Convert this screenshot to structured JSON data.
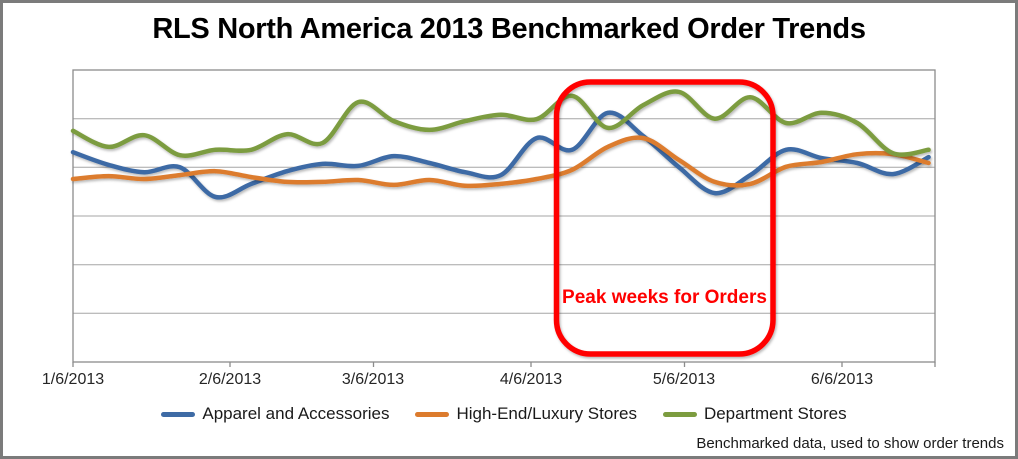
{
  "footer": {
    "note": "Benchmarked data, used to show order trends"
  },
  "chart_data": {
    "type": "line",
    "title": "RLS North America 2013 Benchmarked Order Trends",
    "legend_position": "bottom",
    "x_axis": {
      "unit": "date",
      "tick_labels": [
        "1/6/2013",
        "2/6/2013",
        "3/6/2013",
        "4/6/2013",
        "5/6/2013",
        "6/6/2013"
      ]
    },
    "y_axis": {
      "labels_visible": false,
      "gridlines": 5,
      "range": [
        0,
        6
      ]
    },
    "x_dates": [
      "1/6/2013",
      "1/13/2013",
      "1/20/2013",
      "1/27/2013",
      "2/3/2013",
      "2/10/2013",
      "2/17/2013",
      "2/24/2013",
      "3/3/2013",
      "3/10/2013",
      "3/17/2013",
      "3/24/2013",
      "3/31/2013",
      "4/7/2013",
      "4/14/2013",
      "4/21/2013",
      "4/28/2013",
      "5/5/2013",
      "5/12/2013",
      "5/19/2013",
      "5/26/2013",
      "6/2/2013",
      "6/9/2013",
      "6/16/2013",
      "6/23/2013"
    ],
    "series": [
      {
        "name": "Apparel and Accessories",
        "color": "#3E6BA5",
        "values": [
          4.31,
          4.05,
          3.9,
          4.0,
          3.39,
          3.66,
          3.92,
          4.07,
          4.03,
          4.23,
          4.09,
          3.9,
          3.84,
          4.6,
          4.36,
          5.12,
          4.64,
          4.0,
          3.47,
          3.84,
          4.36,
          4.19,
          4.09,
          3.86,
          4.21
        ]
      },
      {
        "name": "High-End/Luxury Stores",
        "color": "#DC7B2D",
        "values": [
          3.76,
          3.82,
          3.76,
          3.84,
          3.92,
          3.8,
          3.7,
          3.7,
          3.74,
          3.64,
          3.74,
          3.62,
          3.66,
          3.76,
          3.95,
          4.42,
          4.6,
          4.15,
          3.7,
          3.66,
          4.01,
          4.11,
          4.27,
          4.27,
          4.09
        ]
      },
      {
        "name": "Department Stores",
        "color": "#7C9C3F",
        "values": [
          4.75,
          4.42,
          4.66,
          4.25,
          4.36,
          4.36,
          4.68,
          4.5,
          5.34,
          4.95,
          4.77,
          4.95,
          5.08,
          4.99,
          5.47,
          4.81,
          5.28,
          5.55,
          5.0,
          5.44,
          4.91,
          5.12,
          4.91,
          4.29,
          4.36
        ]
      }
    ],
    "annotation": {
      "label": "Peak weeks for Orders",
      "color": "#FF0000",
      "x_start": "4/11/2013",
      "x_end": "5/24/2013"
    }
  }
}
